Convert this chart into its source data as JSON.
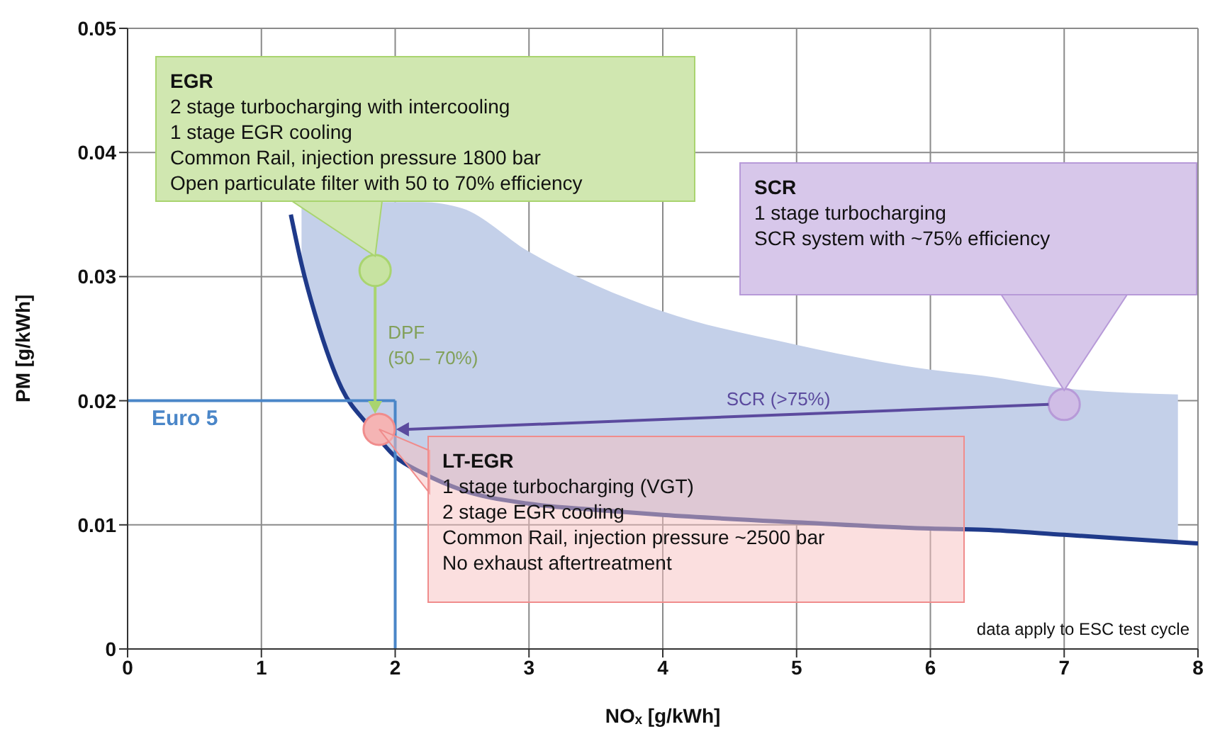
{
  "chart_data": {
    "type": "line",
    "xlabel": "NOₓ [g/kWh]",
    "ylabel": "PM [g/kWh]",
    "xlim": [
      0,
      8
    ],
    "ylim": [
      0,
      0.05
    ],
    "xticks": [
      0,
      1,
      2,
      3,
      4,
      5,
      6,
      7,
      8
    ],
    "yticks": [
      0,
      0.01,
      0.02,
      0.03,
      0.04,
      0.05
    ],
    "grid": true,
    "series": [
      {
        "type": "line",
        "color": "#1f3a8a",
        "x": [
          1.22,
          1.3,
          1.4,
          1.6,
          1.8,
          2,
          2.2,
          2.5,
          3,
          3.5,
          4,
          5,
          6,
          6.4,
          7,
          7.85,
          8
        ],
        "values": [
          0.035,
          0.031,
          0.027,
          0.021,
          0.018,
          0.0155,
          0.0142,
          0.0128,
          0.0117,
          0.0112,
          0.0108,
          0.0102,
          0.0097,
          0.0096,
          0.0092,
          0.0086,
          0.0085
        ],
        "lower": [
          null,
          0.031,
          0.027,
          0.021,
          0.018,
          0.0155,
          0.0142,
          0.0128,
          0.0117,
          0.0112,
          0.0108,
          0.0102,
          0.0097,
          0.0096,
          0.0092,
          0.0086,
          null
        ],
        "upper": [
          null,
          0.036,
          0.036,
          0.036,
          0.036,
          0.036,
          0.036,
          0.0355,
          0.032,
          0.0293,
          0.0272,
          0.0245,
          0.0225,
          0.022,
          0.021,
          0.0205,
          null
        ]
      },
      {
        "type": "scatter",
        "color": "#a9d46f",
        "x": [
          1.85
        ],
        "values": [
          0.0305
        ]
      },
      {
        "type": "scatter",
        "color": "#b79ad8",
        "x": [
          7.0
        ],
        "values": [
          0.0197
        ]
      },
      {
        "type": "scatter",
        "color": "#f08c8c",
        "x": [
          1.88
        ],
        "values": [
          0.0177
        ]
      }
    ],
    "ref_lines": [
      {
        "axis": "y",
        "value": 0.02,
        "label": "Euro 5",
        "color": "#4a86c8"
      },
      {
        "axis": "x",
        "value": 2,
        "color": "#4a86c8"
      }
    ],
    "annotations": [
      "EGR\n2 stage turbocharging with intercooling\n1 stage EGR cooling\nCommon Rail, injection pressure 1800 bar\nOpen particulate filter with 50 to 70% efficiency",
      "SCR\n1 stage turbocharging\nSCR system with  ~75% efficiency",
      "LT-EGR\n1 stage turbocharging (VGT)\n2 stage EGR cooling\nCommon Rail, injection pressure ~2500 bar\nNo exhaust aftertreatment",
      "DPF\n(50 – 70%)",
      "SCR (>75%)",
      "data apply to ESC test cycle"
    ]
  }
}
